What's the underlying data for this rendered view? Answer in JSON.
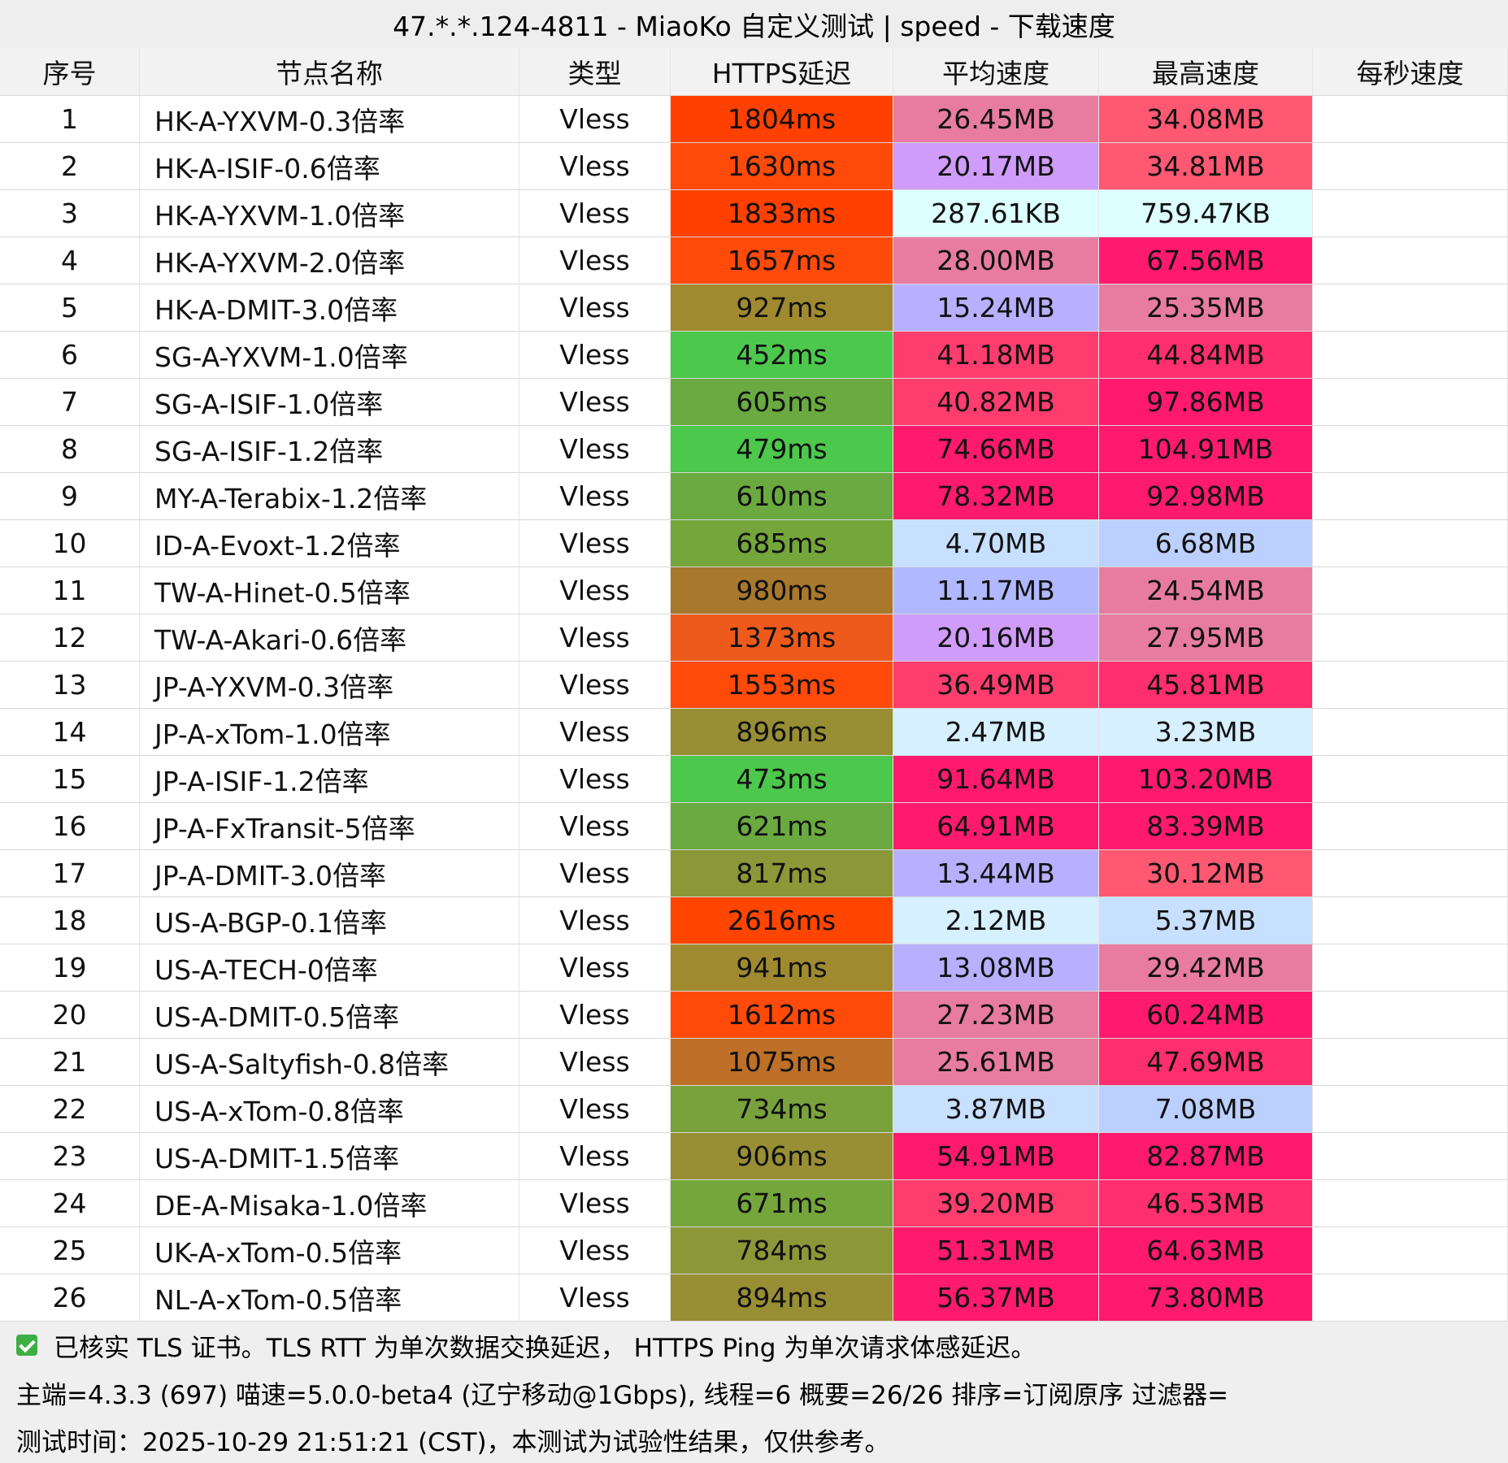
{
  "header": {
    "title": "47.*.*.124-4811 - MiaoKo 自定义测试 | speed - 下载速度"
  },
  "table": {
    "columns": [
      "序号",
      "节点名称",
      "类型",
      "HTTPS延迟",
      "平均速度",
      "最高速度",
      "每秒速度"
    ],
    "rows": [
      [
        "1",
        "HK-A-YXVM-0.3倍率",
        "Vless",
        "1804ms",
        "26.45MB",
        "34.08MB"
      ],
      [
        "2",
        "HK-A-ISIF-0.6倍率",
        "Vless",
        "1630ms",
        "20.17MB",
        "34.81MB"
      ],
      [
        "3",
        "HK-A-YXVM-1.0倍率",
        "Vless",
        "1833ms",
        "287.61KB",
        "759.47KB"
      ],
      [
        "4",
        "HK-A-YXVM-2.0倍率",
        "Vless",
        "1657ms",
        "28.00MB",
        "67.56MB"
      ],
      [
        "5",
        "HK-A-DMIT-3.0倍率",
        "Vless",
        "927ms",
        "15.24MB",
        "25.35MB"
      ],
      [
        "6",
        "SG-A-YXVM-1.0倍率",
        "Vless",
        "452ms",
        "41.18MB",
        "44.84MB"
      ],
      [
        "7",
        "SG-A-ISIF-1.0倍率",
        "Vless",
        "605ms",
        "40.82MB",
        "97.86MB"
      ],
      [
        "8",
        "SG-A-ISIF-1.2倍率",
        "Vless",
        "479ms",
        "74.66MB",
        "104.91MB"
      ],
      [
        "9",
        "MY-A-Terabix-1.2倍率",
        "Vless",
        "610ms",
        "78.32MB",
        "92.98MB"
      ],
      [
        "10",
        "ID-A-Evoxt-1.2倍率",
        "Vless",
        "685ms",
        "4.70MB",
        "6.68MB"
      ],
      [
        "11",
        "TW-A-Hinet-0.5倍率",
        "Vless",
        "980ms",
        "11.17MB",
        "24.54MB"
      ],
      [
        "12",
        "TW-A-Akari-0.6倍率",
        "Vless",
        "1373ms",
        "20.16MB",
        "27.95MB"
      ],
      [
        "13",
        "JP-A-YXVM-0.3倍率",
        "Vless",
        "1553ms",
        "36.49MB",
        "45.81MB"
      ],
      [
        "14",
        "JP-A-xTom-1.0倍率",
        "Vless",
        "896ms",
        "2.47MB",
        "3.23MB"
      ],
      [
        "15",
        "JP-A-ISIF-1.2倍率",
        "Vless",
        "473ms",
        "91.64MB",
        "103.20MB"
      ],
      [
        "16",
        "JP-A-FxTransit-5倍率",
        "Vless",
        "621ms",
        "64.91MB",
        "83.39MB"
      ],
      [
        "17",
        "JP-A-DMIT-3.0倍率",
        "Vless",
        "817ms",
        "13.44MB",
        "30.12MB"
      ],
      [
        "18",
        "US-A-BGP-0.1倍率",
        "Vless",
        "2616ms",
        "2.12MB",
        "5.37MB"
      ],
      [
        "19",
        "US-A-TECH-0倍率",
        "Vless",
        "941ms",
        "13.08MB",
        "29.42MB"
      ],
      [
        "20",
        "US-A-DMIT-0.5倍率",
        "Vless",
        "1612ms",
        "27.23MB",
        "60.24MB"
      ],
      [
        "21",
        "US-A-Saltyfish-0.8倍率",
        "Vless",
        "1075ms",
        "25.61MB",
        "47.69MB"
      ],
      [
        "22",
        "US-A-xTom-0.8倍率",
        "Vless",
        "734ms",
        "3.87MB",
        "7.08MB"
      ],
      [
        "23",
        "US-A-DMIT-1.5倍率",
        "Vless",
        "906ms",
        "54.91MB",
        "82.87MB"
      ],
      [
        "24",
        "DE-A-Misaka-1.0倍率",
        "Vless",
        "671ms",
        "39.20MB",
        "46.53MB"
      ],
      [
        "25",
        "UK-A-xTom-0.5倍率",
        "Vless",
        "784ms",
        "51.31MB",
        "64.63MB"
      ],
      [
        "26",
        "NL-A-xTom-0.5倍率",
        "Vless",
        "894ms",
        "56.37MB",
        "73.80MB"
      ]
    ],
    "cell_colors": [
      [
        "#ff4000",
        "#e87ca0",
        "#ff5872"
      ],
      [
        "#ff4a0a",
        "#cf9cfa",
        "#ff5872"
      ],
      [
        "#ff4000",
        "#ddffff",
        "#ddffff"
      ],
      [
        "#ff4a0a",
        "#e87ca0",
        "#ff1a6e"
      ],
      [
        "#a08a30",
        "#b8b0ff",
        "#e87ca0"
      ],
      [
        "#4cc84c",
        "#ff3c6e",
        "#ff2e6e"
      ],
      [
        "#6aaa40",
        "#ff3c6e",
        "#ff1a6e"
      ],
      [
        "#4cc84c",
        "#ff1a6e",
        "#ff1a6e"
      ],
      [
        "#6aaa40",
        "#ff1a6e",
        "#ff1a6e"
      ],
      [
        "#74a63c",
        "#c8e0ff",
        "#bcd0ff"
      ],
      [
        "#a8782c",
        "#b0b8ff",
        "#e87ca0"
      ],
      [
        "#ee5a1c",
        "#cf9cfa",
        "#e87ca0"
      ],
      [
        "#ff4a0a",
        "#ff3c6e",
        "#ff2e6e"
      ],
      [
        "#988e34",
        "#d6f0ff",
        "#d6f0ff"
      ],
      [
        "#4cc84c",
        "#ff1a6e",
        "#ff1a6e"
      ],
      [
        "#6aaa40",
        "#ff1a6e",
        "#ff1a6e"
      ],
      [
        "#8a9838",
        "#b8b0ff",
        "#ff5872"
      ],
      [
        "#ff4500",
        "#d6f0ff",
        "#c8e0ff"
      ],
      [
        "#a08a30",
        "#b8b0ff",
        "#e87ca0"
      ],
      [
        "#ff4a0a",
        "#e87ca0",
        "#ff1a6e"
      ],
      [
        "#be7028",
        "#e87ca0",
        "#ff2e6e"
      ],
      [
        "#7aa23c",
        "#c8e0ff",
        "#bcd0ff"
      ],
      [
        "#988e34",
        "#ff1a6e",
        "#ff1a6e"
      ],
      [
        "#74a63c",
        "#ff3c6e",
        "#ff2e6e"
      ],
      [
        "#8a9838",
        "#ff1a6e",
        "#ff1a6e"
      ],
      [
        "#988e34",
        "#ff1a6e",
        "#ff1a6e"
      ]
    ]
  },
  "footer": {
    "lines": [
      "已核实 TLS 证书。TLS RTT 为单次数据交换延迟， HTTPS Ping 为单次请求体感延迟。",
      "主端=4.3.3 (697) 喵速=5.0.0-beta4 (辽宁移动@1Gbps), 线程=6 概要=26/26 排序=订阅原序 过滤器=",
      "测试时间：2025-10-29 21:51:21 (CST)，本测试为试验性结果，仅供参考。"
    ]
  }
}
